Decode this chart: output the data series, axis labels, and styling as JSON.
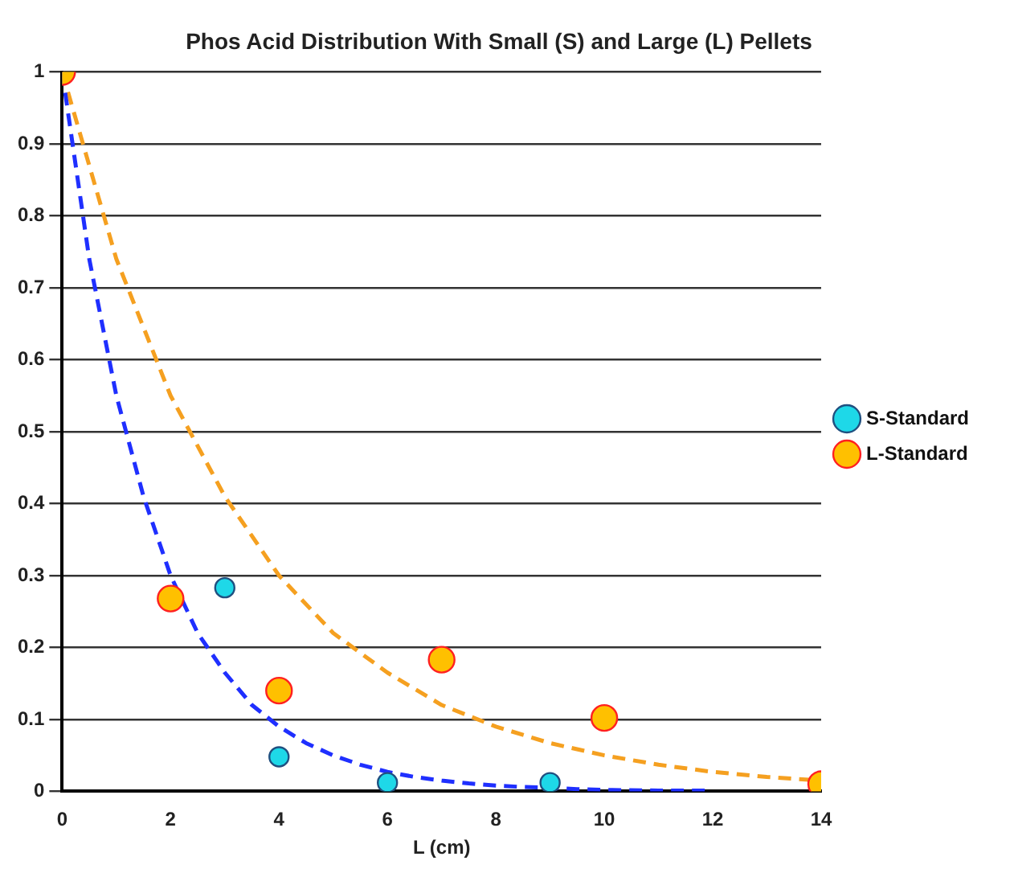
{
  "chart_data": {
    "type": "scatter",
    "title": "Phos Acid Distribution With Small (S) and Large (L) Pellets",
    "xlabel": "L (cm)",
    "xlim": [
      0,
      14
    ],
    "xticks": [
      0,
      2,
      4,
      6,
      8,
      10,
      12,
      14
    ],
    "ylim": [
      0,
      1
    ],
    "yticks": [
      0,
      0.1,
      0.2,
      0.3,
      0.4,
      0.5,
      0.6,
      0.7,
      0.8,
      0.9,
      1
    ],
    "grid": "y",
    "legend": "right",
    "series": [
      {
        "type": "line",
        "color": "#1f2fff",
        "line_style": "dashed",
        "marker": "none",
        "x": [
          0,
          0.5,
          1,
          1.5,
          2,
          2.5,
          3,
          3.5,
          4,
          4.5,
          5,
          5.5,
          6,
          6.5,
          7,
          7.5,
          8,
          8.5,
          9,
          9.5,
          10,
          11,
          12
        ],
        "values": [
          1,
          0.74,
          0.55,
          0.41,
          0.3,
          0.22,
          0.165,
          0.12,
          0.09,
          0.067,
          0.05,
          0.037,
          0.027,
          0.02,
          0.015,
          0.011,
          0.008,
          0.006,
          0.005,
          0.003,
          0.002,
          0.001,
          0.001
        ]
      },
      {
        "type": "line",
        "color": "#f5a020",
        "line_style": "dashed",
        "marker": "none",
        "x": [
          0,
          1,
          2,
          3,
          4,
          5,
          6,
          7,
          8,
          9,
          10,
          11,
          12,
          13,
          14
        ],
        "values": [
          1,
          0.74,
          0.55,
          0.41,
          0.3,
          0.22,
          0.165,
          0.12,
          0.09,
          0.067,
          0.05,
          0.037,
          0.027,
          0.02,
          0.015
        ]
      },
      {
        "name": "S-Standard",
        "type": "scatter",
        "color": "#1ed8e8",
        "marker": "circle",
        "x": [
          3,
          4,
          6,
          9
        ],
        "values": [
          0.283,
          0.048,
          0.012,
          0.012
        ]
      },
      {
        "name": "L-Standard",
        "type": "scatter",
        "color": "#ffc000",
        "marker": "circle",
        "x": [
          0,
          2,
          4,
          7,
          10,
          14
        ],
        "values": [
          1,
          0.268,
          0.14,
          0.183,
          0.102,
          0.01
        ]
      }
    ]
  }
}
